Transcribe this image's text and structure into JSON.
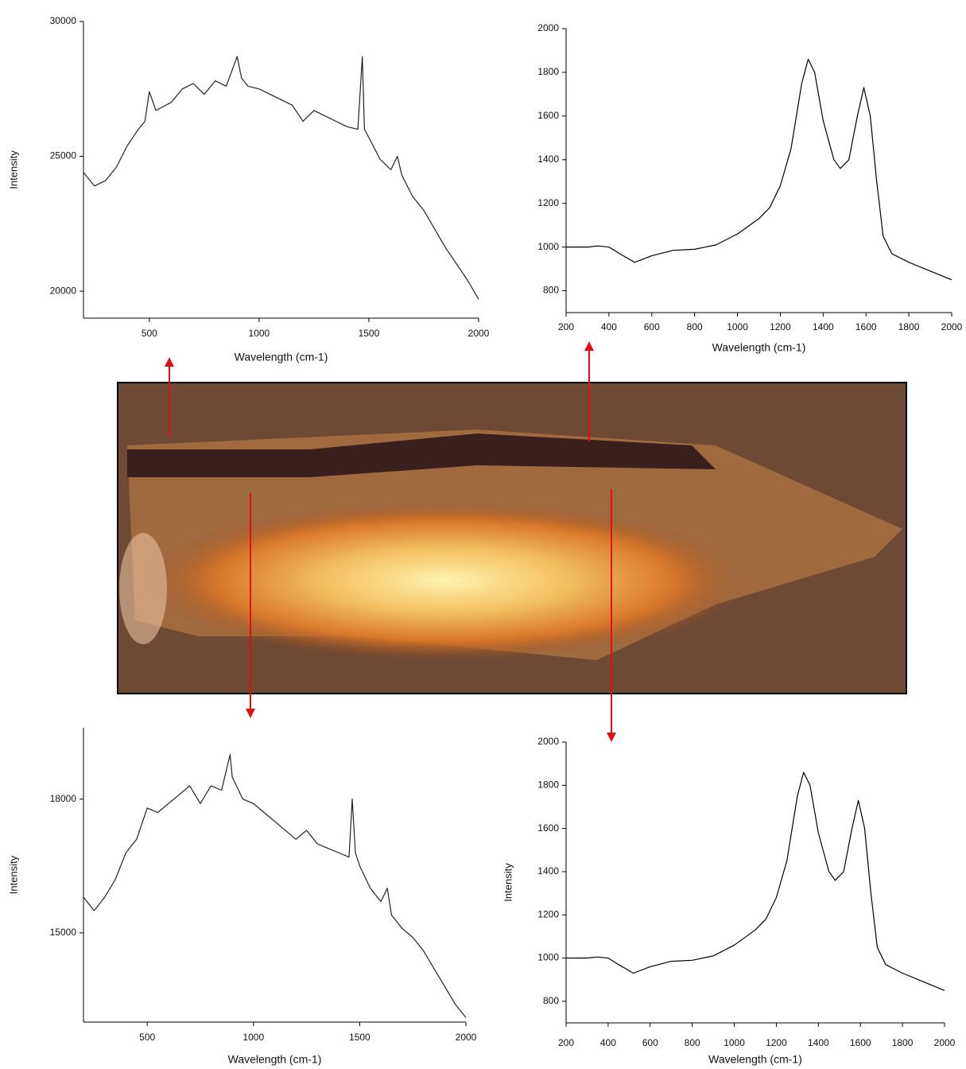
{
  "chart_data": [
    {
      "type": "line",
      "x_label": "Wavelength (cm-1)",
      "y_label": "Intensity",
      "xlim": [
        200,
        2000
      ],
      "ylim": [
        19000,
        30000
      ],
      "xticks": [
        500,
        1000,
        1500,
        2000
      ],
      "yticks": [
        20000,
        25000,
        30000
      ],
      "x": [
        200,
        250,
        300,
        350,
        400,
        450,
        480,
        500,
        530,
        600,
        650,
        700,
        750,
        800,
        850,
        900,
        920,
        950,
        1000,
        1050,
        1100,
        1150,
        1200,
        1250,
        1300,
        1350,
        1400,
        1450,
        1470,
        1480,
        1500,
        1550,
        1600,
        1630,
        1650,
        1700,
        1750,
        1800,
        1850,
        1900,
        1950,
        2000
      ],
      "series": [
        {
          "color": "#222222",
          "values": [
            24400,
            23900,
            24100,
            24600,
            25400,
            26000,
            26300,
            27400,
            26700,
            27000,
            27500,
            27700,
            27300,
            27800,
            27600,
            28700,
            27900,
            27600,
            27500,
            27300,
            27100,
            26900,
            26300,
            26700,
            26500,
            26300,
            26100,
            26000,
            28700,
            26000,
            25700,
            24900,
            24500,
            25000,
            24300,
            23500,
            23000,
            22300,
            21600,
            21000,
            20400,
            19700
          ]
        }
      ]
    },
    {
      "type": "line",
      "x_label": "Wavelength (cm-1)",
      "xlim": [
        200,
        2000
      ],
      "ylim": [
        700,
        2000
      ],
      "xticks": [
        200,
        400,
        600,
        800,
        1000,
        1200,
        1400,
        1600,
        1800,
        2000
      ],
      "yticks": [
        800,
        1000,
        1200,
        1400,
        1600,
        1800,
        2000
      ],
      "x": [
        200,
        250,
        300,
        350,
        400,
        450,
        520,
        600,
        700,
        800,
        900,
        1000,
        1100,
        1150,
        1200,
        1250,
        1300,
        1330,
        1360,
        1400,
        1450,
        1480,
        1520,
        1560,
        1590,
        1620,
        1650,
        1680,
        1720,
        1800,
        1900,
        2000
      ],
      "series": [
        {
          "color": "#000000",
          "values": [
            1000,
            1000,
            1000,
            1005,
            1000,
            970,
            930,
            960,
            985,
            990,
            1010,
            1060,
            1130,
            1180,
            1280,
            1450,
            1750,
            1860,
            1800,
            1580,
            1400,
            1360,
            1400,
            1600,
            1730,
            1600,
            1300,
            1050,
            970,
            930,
            890,
            850
          ]
        }
      ]
    },
    {
      "type": "line",
      "x_label": "Wavelength (cm-1)",
      "y_label": "Intensity",
      "xlim": [
        200,
        2000
      ],
      "ylim": [
        13000,
        19600
      ],
      "xticks": [
        500,
        1000,
        1500,
        2000
      ],
      "yticks": [
        15000,
        18000
      ],
      "x": [
        200,
        250,
        300,
        350,
        400,
        450,
        500,
        550,
        600,
        700,
        750,
        800,
        850,
        890,
        900,
        950,
        1000,
        1050,
        1100,
        1150,
        1200,
        1250,
        1300,
        1350,
        1400,
        1450,
        1465,
        1480,
        1500,
        1550,
        1600,
        1630,
        1650,
        1700,
        1750,
        1800,
        1850,
        1900,
        1950,
        2000
      ],
      "series": [
        {
          "color": "#222222",
          "values": [
            15800,
            15500,
            15800,
            16200,
            16800,
            17100,
            17800,
            17700,
            17900,
            18300,
            17900,
            18300,
            18200,
            19000,
            18500,
            18000,
            17900,
            17700,
            17500,
            17300,
            17100,
            17300,
            17000,
            16900,
            16800,
            16700,
            18000,
            16800,
            16500,
            16000,
            15700,
            16000,
            15400,
            15100,
            14900,
            14600,
            14200,
            13800,
            13400,
            13100
          ]
        }
      ]
    },
    {
      "type": "line",
      "x_label": "Wavelength (cm-1)",
      "y_label": "Intensity",
      "xlim": [
        200,
        2000
      ],
      "ylim": [
        700,
        2000
      ],
      "xticks": [
        200,
        400,
        600,
        800,
        1000,
        1200,
        1400,
        1600,
        1800,
        2000
      ],
      "yticks": [
        800,
        1000,
        1200,
        1400,
        1600,
        1800,
        2000
      ],
      "x": [
        200,
        250,
        300,
        350,
        400,
        450,
        520,
        600,
        700,
        800,
        900,
        1000,
        1100,
        1150,
        1200,
        1250,
        1300,
        1330,
        1360,
        1400,
        1450,
        1480,
        1520,
        1560,
        1590,
        1620,
        1650,
        1680,
        1720,
        1800,
        1900,
        2000
      ],
      "series": [
        {
          "color": "#000000",
          "values": [
            1000,
            1000,
            1000,
            1005,
            1000,
            970,
            930,
            960,
            985,
            990,
            1010,
            1060,
            1130,
            1180,
            1280,
            1450,
            1750,
            1860,
            1800,
            1580,
            1400,
            1360,
            1400,
            1600,
            1730,
            1600,
            1300,
            1050,
            970,
            930,
            890,
            850
          ]
        }
      ]
    }
  ]
}
